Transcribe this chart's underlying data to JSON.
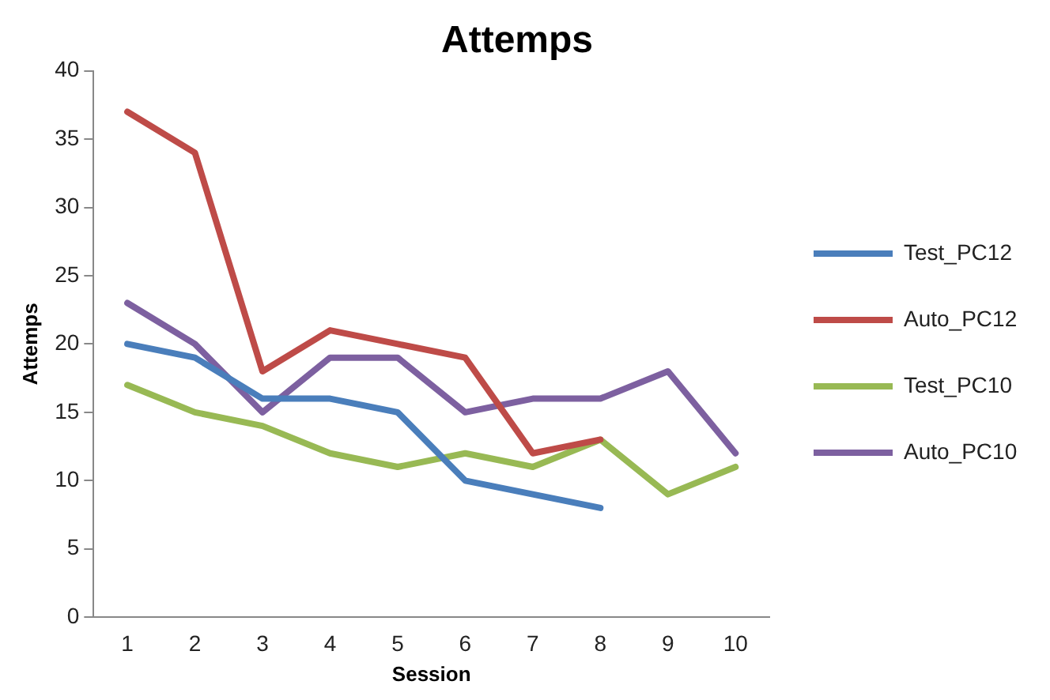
{
  "chart_data": {
    "type": "line",
    "title": "Attemps",
    "xlabel": "Session",
    "ylabel": "Attemps",
    "categories": [
      "1",
      "2",
      "3",
      "4",
      "5",
      "6",
      "7",
      "8",
      "9",
      "10"
    ],
    "series": [
      {
        "name": "Test_PC12",
        "color": "#4a7ebb",
        "values": [
          20,
          19,
          16,
          16,
          15,
          10,
          9,
          8,
          null,
          null
        ]
      },
      {
        "name": "Auto_PC12",
        "color": "#be4b48",
        "values": [
          37,
          34,
          18,
          21,
          20,
          19,
          12,
          13,
          null,
          null
        ]
      },
      {
        "name": "Test_PC10",
        "color": "#98b954",
        "values": [
          17,
          15,
          14,
          12,
          11,
          12,
          11,
          13,
          9,
          11
        ]
      },
      {
        "name": "Auto_PC10",
        "color": "#7d60a0",
        "values": [
          23,
          20,
          15,
          19,
          19,
          15,
          16,
          16,
          18,
          12
        ]
      }
    ],
    "ylim": [
      0,
      40
    ],
    "yticks": [
      0,
      5,
      10,
      15,
      20,
      25,
      30,
      35,
      40
    ],
    "grid": false,
    "legend": "right",
    "marker": "none",
    "line_style": "solid"
  }
}
